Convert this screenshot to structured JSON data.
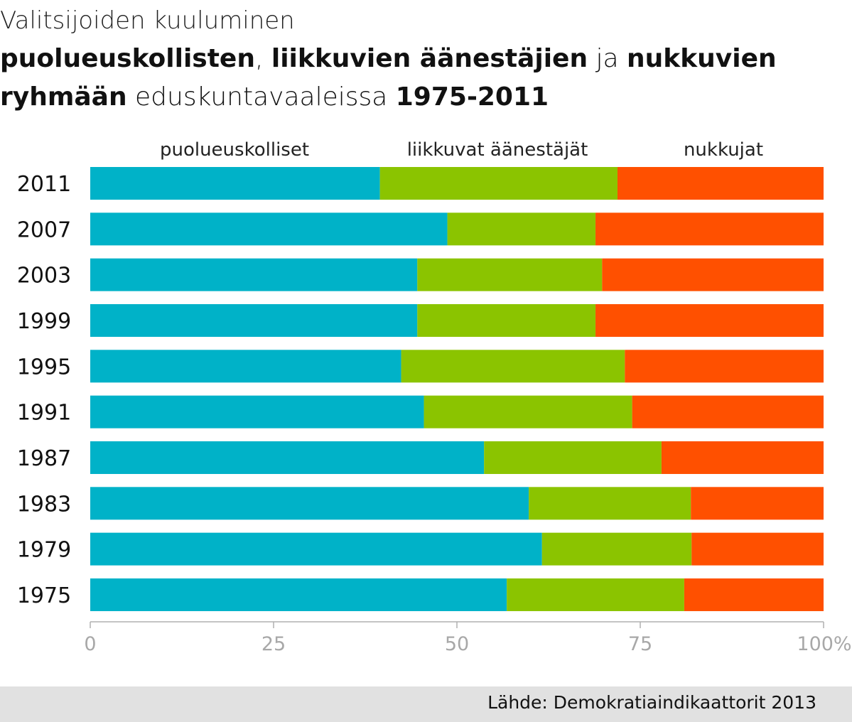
{
  "title": {
    "line1": "Valitsijoiden kuuluminen",
    "line2": [
      {
        "text": "puolueuskollisten",
        "bold": true
      },
      {
        "text": ", ",
        "bold": false
      },
      {
        "text": "liikkuvien äänestäjien",
        "bold": true
      },
      {
        "text": " ja ",
        "bold": false
      },
      {
        "text": "nukkuvien",
        "bold": true
      }
    ],
    "line3": [
      {
        "text": "ryhmään",
        "bold": true
      },
      {
        "text": " eduskuntavaaleissa ",
        "bold": false
      },
      {
        "text": "1975-2011",
        "bold": true
      }
    ]
  },
  "source": "Lähde: Demokratiaindikaattorit 2013",
  "colors": {
    "puolueuskolliset": "#00b2c8",
    "liikkuvat": "#8bc400",
    "nukkujat": "#ff5000",
    "axis": "#b0b0b0",
    "tick_text": "#a8a8a8"
  },
  "chart_data": {
    "type": "bar",
    "orientation": "horizontal",
    "stacked": true,
    "categories": [
      "2011",
      "2007",
      "2003",
      "1999",
      "1995",
      "1991",
      "1987",
      "1983",
      "1979",
      "1975"
    ],
    "series": [
      {
        "name": "puolueuskolliset",
        "values": [
          39.5,
          48.7,
          44.6,
          44.6,
          42.4,
          45.5,
          53.7,
          59.8,
          61.6,
          56.8
        ]
      },
      {
        "name": "liikkuvat äänestäjät",
        "values": [
          32.4,
          20.2,
          25.2,
          24.3,
          30.5,
          28.4,
          24.2,
          22.1,
          20.4,
          24.2
        ]
      },
      {
        "name": "nukkujat",
        "values": [
          28.1,
          31.1,
          30.2,
          31.1,
          27.1,
          26.1,
          22.1,
          18.1,
          18.0,
          19.0
        ]
      }
    ],
    "xlim": [
      0,
      100
    ],
    "xticks": [
      "0",
      "25",
      "50",
      "75",
      "100%"
    ],
    "legend": "top"
  }
}
